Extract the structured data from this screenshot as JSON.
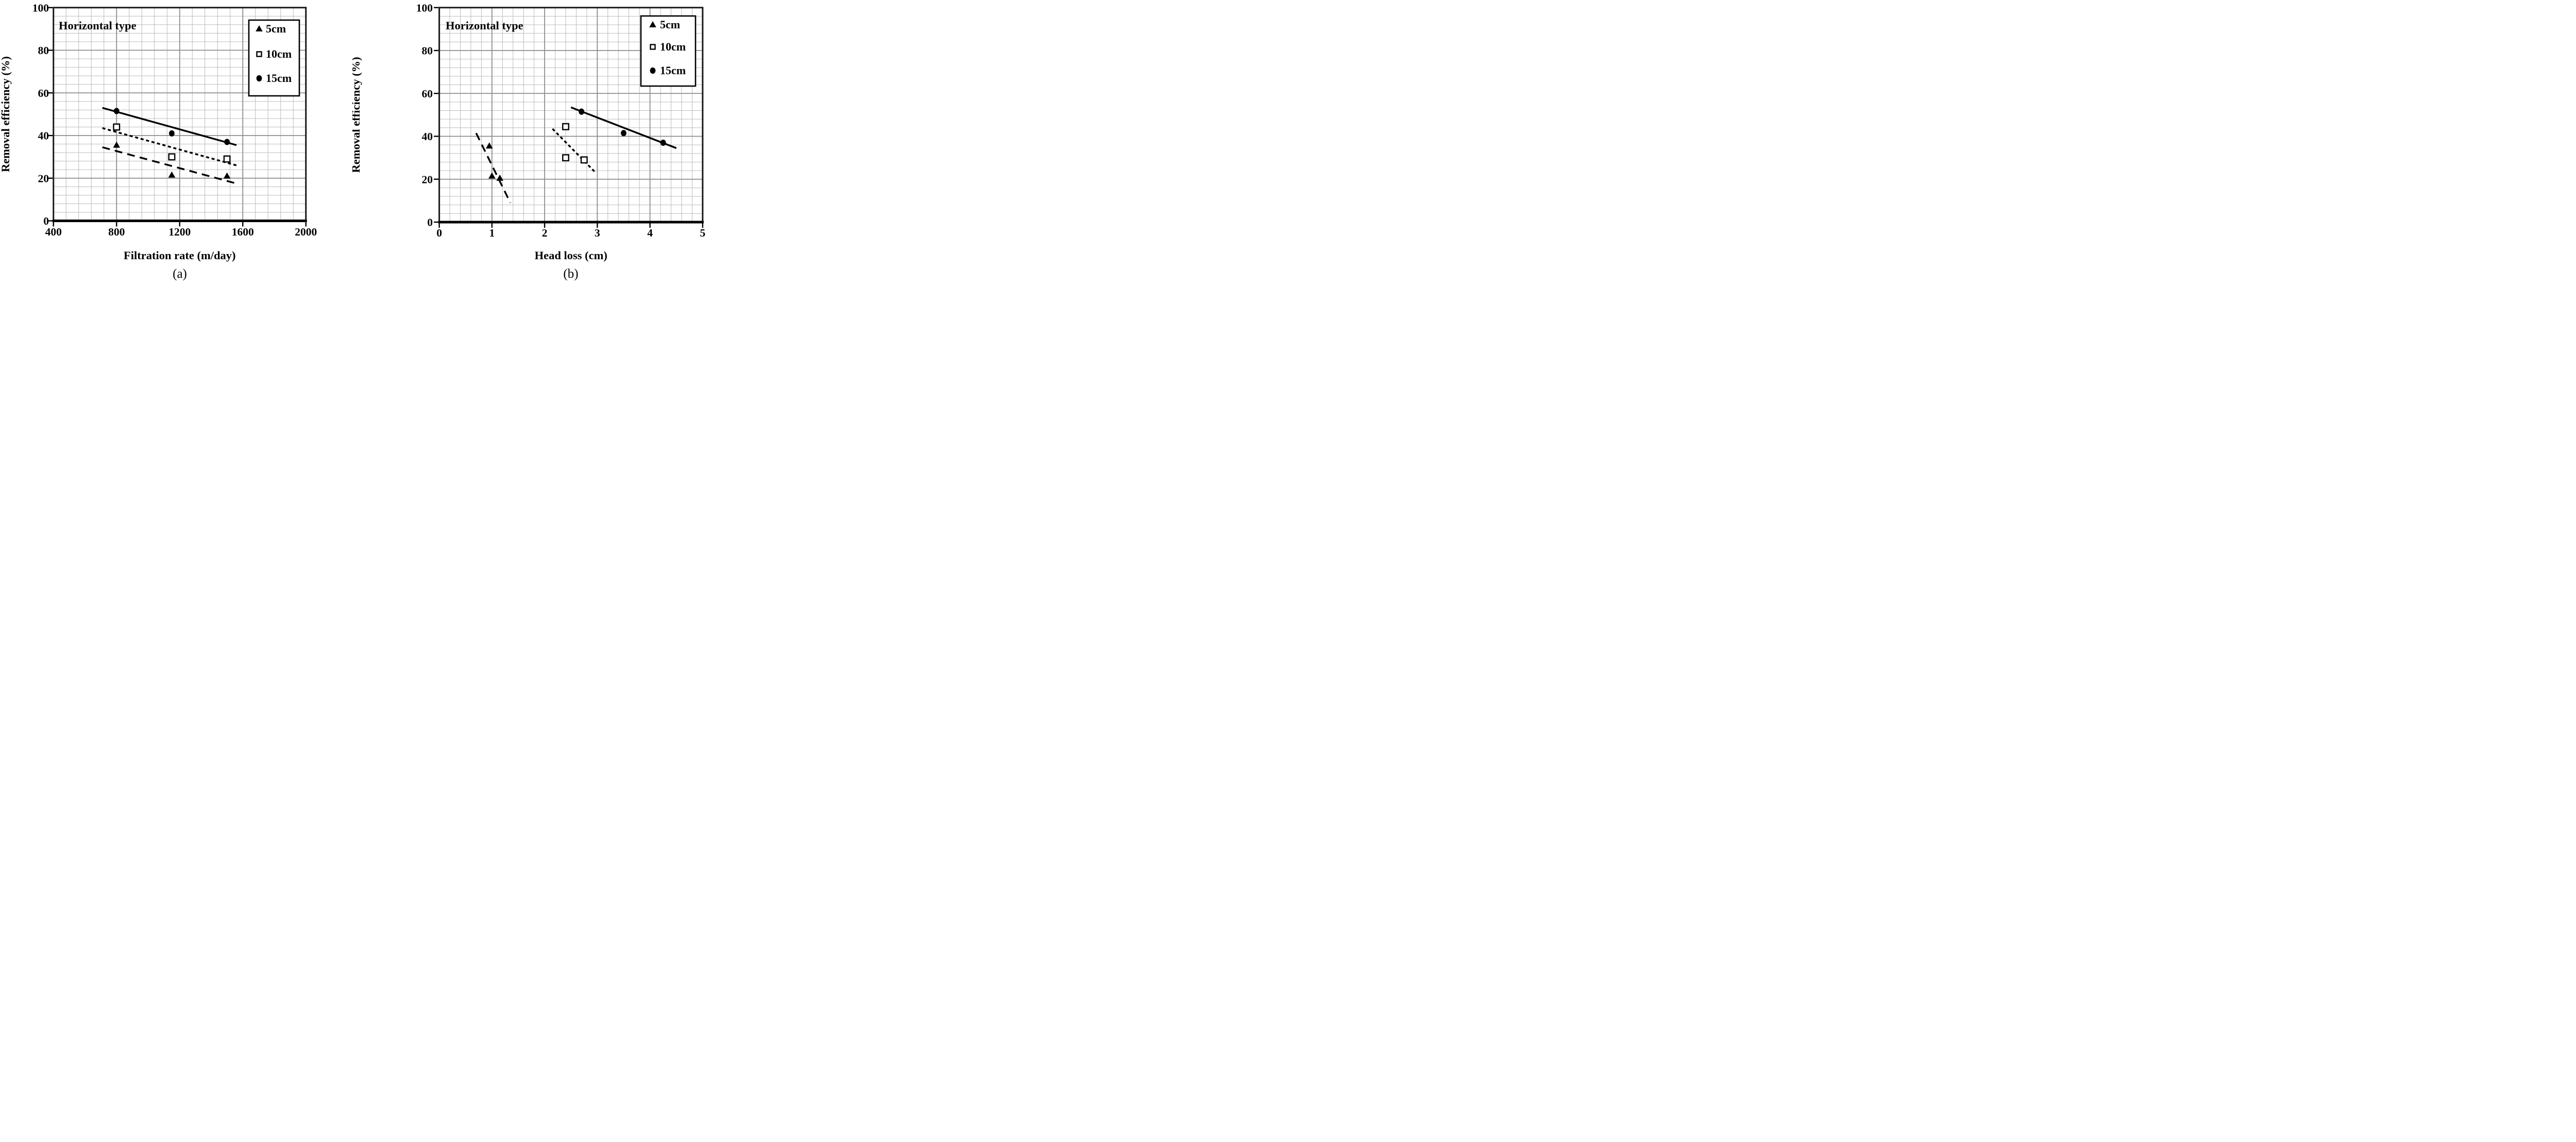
{
  "page": {
    "background": "#ffffff"
  },
  "colors": {
    "ink": "#000000",
    "grid_minor": "#b4b4b4",
    "grid_major": "#8d8d8d",
    "plot_border": "#1a1a1a",
    "marker_fill": "#000000",
    "open_marker_fill": "#ffffff"
  },
  "chart_data": [
    {
      "id": "a",
      "type": "scatter",
      "panel_label": "(a)",
      "annotation": "Horizontal type",
      "xlabel": "Filtration rate (m/day)",
      "ylabel": "Removal efficiency (%)",
      "xlim": [
        400,
        2000
      ],
      "ylim": [
        0,
        100
      ],
      "x_ticks": [
        "400",
        "800",
        "1200",
        "1600",
        "2000"
      ],
      "y_ticks": [
        "0",
        "20",
        "40",
        "60",
        "80",
        "100"
      ],
      "x_minor_step": 80,
      "y_minor_step": 4,
      "grid": "on",
      "legend": {
        "position": "top-right",
        "entries": [
          "5cm",
          "10cm",
          "15cm"
        ]
      },
      "series": [
        {
          "name": "15cm",
          "marker": "filled-circle",
          "trendline_style": "solid",
          "points": [
            [
              800,
              51.5
            ],
            [
              1150,
              41
            ],
            [
              1500,
              37
            ]
          ],
          "trendline": [
            [
              710,
              53
            ],
            [
              1560,
              35.5
            ]
          ]
        },
        {
          "name": "10cm",
          "marker": "open-square",
          "trendline_style": "dotted",
          "points": [
            [
              800,
              44
            ],
            [
              1150,
              30
            ],
            [
              1500,
              29
            ]
          ],
          "trendline": [
            [
              710,
              43.5
            ],
            [
              1560,
              26
            ]
          ]
        },
        {
          "name": "5cm",
          "marker": "filled-triangle",
          "trendline_style": "long-dash",
          "points": [
            [
              800,
              35.5
            ],
            [
              1150,
              21.5
            ],
            [
              1500,
              21
            ]
          ],
          "trendline": [
            [
              710,
              34.5
            ],
            [
              1560,
              17.5
            ]
          ]
        }
      ]
    },
    {
      "id": "b",
      "type": "scatter",
      "panel_label": "(b)",
      "annotation": "Horizontal type",
      "xlabel": "Head loss (cm)",
      "ylabel": "Removal efficiency (%)",
      "xlim": [
        0,
        5
      ],
      "ylim": [
        0,
        100
      ],
      "x_ticks": [
        "0",
        "1",
        "2",
        "3",
        "4",
        "5"
      ],
      "y_ticks": [
        "0",
        "20",
        "40",
        "60",
        "80",
        "100"
      ],
      "x_minor_step": 0.2,
      "y_minor_step": 4,
      "grid": "on",
      "legend": {
        "position": "top-right",
        "entries": [
          "5cm",
          "10cm",
          "15cm"
        ]
      },
      "series": [
        {
          "name": "15cm",
          "marker": "filled-circle",
          "trendline_style": "solid",
          "points": [
            [
              2.7,
              51.5
            ],
            [
              3.5,
              41.5
            ],
            [
              4.25,
              37
            ]
          ],
          "trendline": [
            [
              2.5,
              53.5
            ],
            [
              4.5,
              34.5
            ]
          ]
        },
        {
          "name": "10cm",
          "marker": "open-square",
          "trendline_style": "dotted",
          "points": [
            [
              2.4,
              44.5
            ],
            [
              2.4,
              30
            ],
            [
              2.75,
              29
            ]
          ],
          "trendline": [
            [
              2.15,
              43.5
            ],
            [
              2.95,
              23.5
            ]
          ]
        },
        {
          "name": "5cm",
          "marker": "filled-triangle",
          "trendline_style": "long-dash",
          "points": [
            [
              0.95,
              35.5
            ],
            [
              1.0,
              21.5
            ],
            [
              1.15,
              20.5
            ]
          ],
          "trendline": [
            [
              0.7,
              41.5
            ],
            [
              1.35,
              9
            ]
          ]
        }
      ]
    }
  ]
}
